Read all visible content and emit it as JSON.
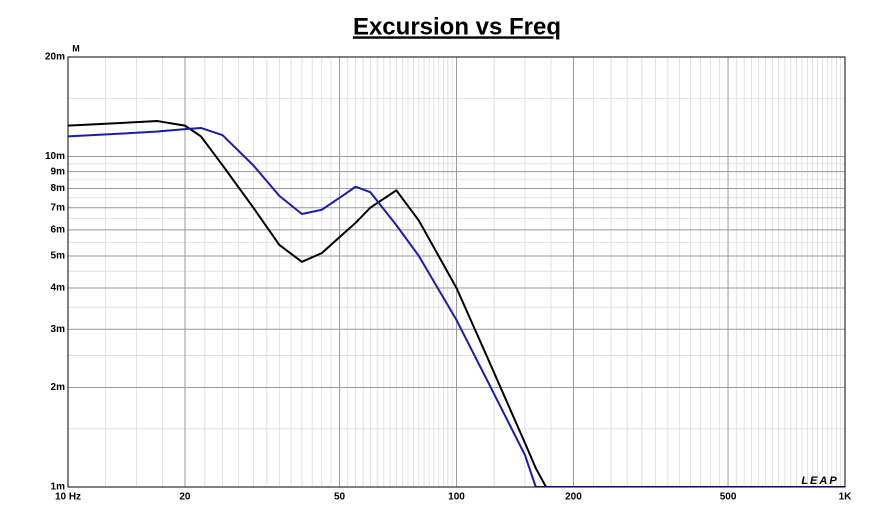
{
  "chart_data": {
    "type": "line",
    "title": "Excursion vs Freq",
    "y_label": "M",
    "logo": "LEAP",
    "x": [
      10,
      15,
      17,
      20,
      22,
      25,
      30,
      35,
      40,
      45,
      50,
      55,
      60,
      70,
      80,
      100,
      120,
      150,
      160,
      170,
      200,
      500,
      1000
    ],
    "series": [
      {
        "color": "#000000",
        "values": [
          0.0124,
          0.0127,
          0.0128,
          0.0124,
          0.0115,
          0.0094,
          0.007,
          0.0054,
          0.0048,
          0.0051,
          0.0057,
          0.0063,
          0.007,
          0.0079,
          0.0064,
          0.004,
          0.00247,
          0.00136,
          0.00114,
          0.001,
          0.001,
          0.001,
          0.001
        ]
      },
      {
        "color": "#1c1caa",
        "values": [
          0.0115,
          0.0118,
          0.0119,
          0.0121,
          0.0122,
          0.0116,
          0.0094,
          0.0076,
          0.0067,
          0.0069,
          0.0075,
          0.0081,
          0.0078,
          0.0062,
          0.005,
          0.0032,
          0.0021,
          0.00125,
          0.001,
          0.001,
          0.001,
          0.001,
          0.001
        ]
      }
    ],
    "xlim": [
      10,
      1000
    ],
    "ylim": [
      0.001,
      0.02
    ],
    "xscale": "log",
    "yscale": "log",
    "grid": true,
    "xticks": [
      {
        "value": 10,
        "label": "10  Hz"
      },
      20,
      50,
      100,
      200,
      500,
      {
        "value": 1000,
        "label": "1K"
      }
    ],
    "yticks": [
      {
        "value": 0.001,
        "label": "1m"
      },
      {
        "value": 0.002,
        "label": "2m"
      },
      {
        "value": 0.003,
        "label": "3m"
      },
      {
        "value": 0.004,
        "label": "4m"
      },
      {
        "value": 0.005,
        "label": "5m"
      },
      {
        "value": 0.006,
        "label": "6m"
      },
      {
        "value": 0.007,
        "label": "7m"
      },
      {
        "value": 0.008,
        "label": "8m"
      },
      {
        "value": 0.009,
        "label": "9m"
      },
      {
        "value": 0.01,
        "label": "10m"
      },
      {
        "value": 0.02,
        "label": "20m"
      }
    ]
  }
}
